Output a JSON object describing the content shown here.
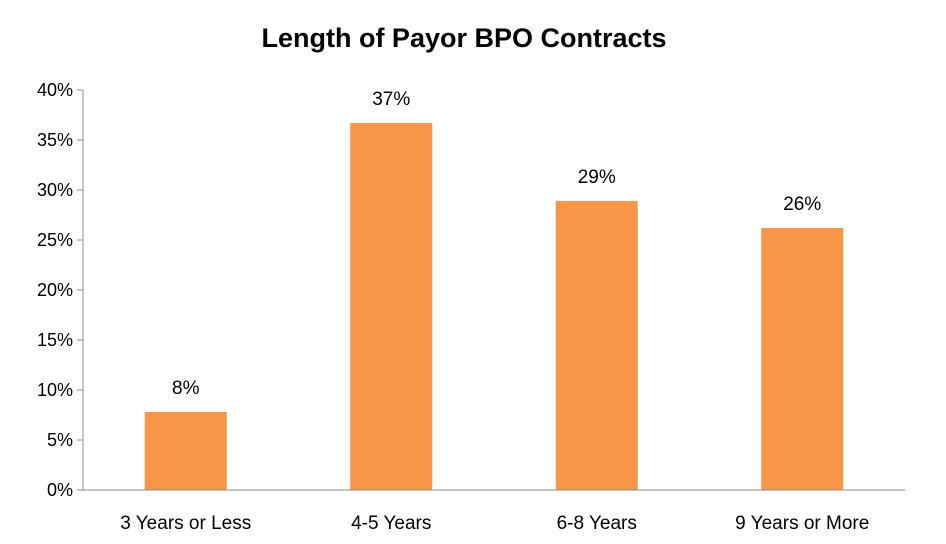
{
  "chart_data": {
    "type": "bar",
    "title": "Length of Payor BPO Contracts",
    "xlabel": "",
    "ylabel": "",
    "categories": [
      "3 Years or Less",
      "4-5 Years",
      "6-8 Years",
      "9 Years or More"
    ],
    "values": [
      0.078,
      0.367,
      0.289,
      0.262
    ],
    "data_labels": [
      "8%",
      "37%",
      "29%",
      "26%"
    ],
    "ylim": [
      0,
      0.4
    ],
    "y_ticks": [
      0,
      0.05,
      0.1,
      0.15,
      0.2,
      0.25,
      0.3,
      0.35,
      0.4
    ],
    "y_tick_labels": [
      "0%",
      "5%",
      "10%",
      "15%",
      "20%",
      "25%",
      "30%",
      "35%",
      "40%"
    ],
    "bar_color": "#f79646",
    "grid": false,
    "legend": "none"
  }
}
